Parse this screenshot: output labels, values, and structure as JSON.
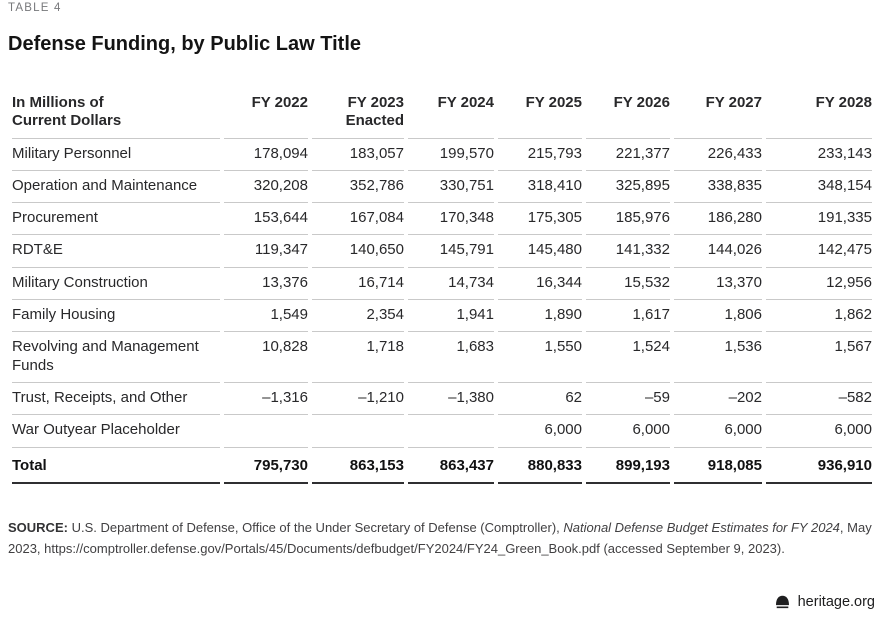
{
  "page": {
    "table_label": "TABLE 4",
    "title": "Defense Funding, by Public Law Title"
  },
  "table": {
    "row_header": "In Millions of\nCurrent Dollars",
    "columns": [
      "FY 2022",
      "FY 2023\nEnacted",
      "FY 2024",
      "FY 2025",
      "FY 2026",
      "FY 2027",
      "FY 2028"
    ],
    "rows": [
      {
        "label": "Military Personnel",
        "values": [
          "178,094",
          "183,057",
          "199,570",
          "215,793",
          "221,377",
          "226,433",
          "233,143"
        ]
      },
      {
        "label": "Operation and Maintenance",
        "values": [
          "320,208",
          "352,786",
          "330,751",
          "318,410",
          "325,895",
          "338,835",
          "348,154"
        ]
      },
      {
        "label": "Procurement",
        "values": [
          "153,644",
          "167,084",
          "170,348",
          "175,305",
          "185,976",
          "186,280",
          "191,335"
        ]
      },
      {
        "label": "RDT&E",
        "values": [
          "119,347",
          "140,650",
          "145,791",
          "145,480",
          "141,332",
          "144,026",
          "142,475"
        ]
      },
      {
        "label": "Military Construction",
        "values": [
          "13,376",
          "16,714",
          "14,734",
          "16,344",
          "15,532",
          "13,370",
          "12,956"
        ]
      },
      {
        "label": "Family Housing",
        "values": [
          "1,549",
          "2,354",
          "1,941",
          "1,890",
          "1,617",
          "1,806",
          "1,862"
        ]
      },
      {
        "label": "Revolving and Management Funds",
        "values": [
          "10,828",
          "1,718",
          "1,683",
          "1,550",
          "1,524",
          "1,536",
          "1,567"
        ]
      },
      {
        "label": "Trust, Receipts, and Other",
        "values": [
          "–1,316",
          "–1,210",
          "–1,380",
          "62",
          "–59",
          "–202",
          "–582"
        ]
      },
      {
        "label": "War Outyear Placeholder",
        "values": [
          "",
          "",
          "",
          "6,000",
          "6,000",
          "6,000",
          "6,000"
        ]
      }
    ],
    "total_row": {
      "label": "Total",
      "values": [
        "795,730",
        "863,153",
        "863,437",
        "880,833",
        "899,193",
        "918,085",
        "936,910"
      ]
    }
  },
  "source": {
    "label": "SOURCE:",
    "pre_italic": " U.S. Department of Defense, Office of the Under Secretary of Defense (Comptroller), ",
    "italic": "National Defense Budget Estimates for FY 2024",
    "post_italic": ", May 2023, https://comptroller.defense.gov/Portals/45/Documents/defbudget/FY2024/FY24_Green_Book.pdf (accessed September 9, 2023)."
  },
  "footer": {
    "site": "heritage.org",
    "logo_icon": "liberty-bell-icon",
    "logo_color": "#1f1f20"
  }
}
